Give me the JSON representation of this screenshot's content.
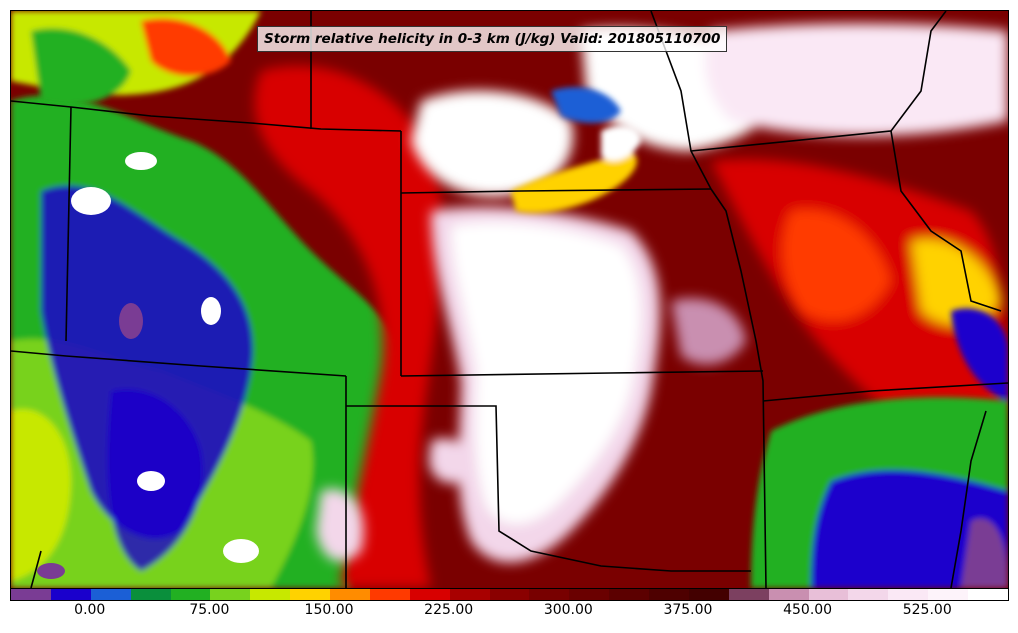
{
  "title": "Storm relative helicity in 0-3 km (J/kg) Valid: 201805110700",
  "colorbar": {
    "levels": [
      -50,
      -25,
      0,
      25,
      50,
      75,
      100,
      125,
      150,
      175,
      200,
      225,
      250,
      275,
      300,
      325,
      350,
      375,
      400,
      425,
      450,
      475,
      500,
      525,
      550,
      575
    ],
    "colors": [
      "#7a3c94",
      "#1a00cc",
      "#1b5fd6",
      "#0a8f3c",
      "#22b022",
      "#78d21e",
      "#c7e800",
      "#ffd200",
      "#ff8c00",
      "#ff3a00",
      "#d80000",
      "#a80000",
      "#8a0000",
      "#780000",
      "#6a0000",
      "#5c0000",
      "#4e0000",
      "#430000",
      "#7c4060",
      "#c98fb0",
      "#e8bfd8",
      "#f3d7ea",
      "#fae8f5",
      "#fdf3fa",
      "#ffffff"
    ],
    "tick_labels": [
      "0.00",
      "75.00",
      "150.00",
      "225.00",
      "300.00",
      "375.00",
      "450.00",
      "525.00"
    ],
    "tick_values": [
      0,
      75,
      150,
      225,
      300,
      375,
      450,
      525
    ]
  },
  "map": {
    "colors": {
      "background": "#7a0000",
      "low": "#1a00cc",
      "mid": "#22b022",
      "yellow": "#c7e800",
      "red": "#d80000",
      "orange": "#ff3a00",
      "pink": "#f3d7ea",
      "white": "#ffffff",
      "purple": "#7a3c94",
      "mauve": "#c98fb0",
      "boundary": "#000000"
    }
  }
}
